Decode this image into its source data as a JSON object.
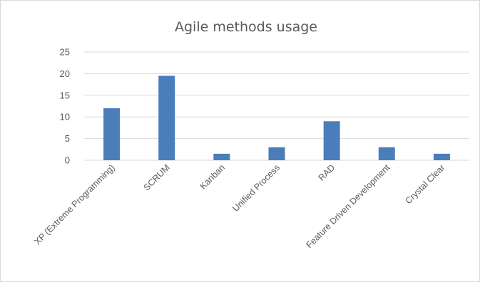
{
  "chart_data": {
    "type": "bar",
    "title": "Agile methods usage",
    "xlabel": "",
    "ylabel": "",
    "ylim": [
      0,
      25
    ],
    "yticks": [
      0,
      5,
      10,
      15,
      20,
      25
    ],
    "grid": true,
    "legend": "none",
    "categories": [
      "XP (Extreme Programming)",
      "SCRUM",
      "Kanban",
      "Unified Process",
      "RAD",
      "Feature Driven Development",
      "Crystal Clear"
    ],
    "values": [
      12,
      19.5,
      1.5,
      3,
      9,
      3,
      1.5
    ],
    "colors": {
      "bar": "#4a7ebb",
      "grid": "#d9d9d9",
      "text": "#595959"
    }
  }
}
